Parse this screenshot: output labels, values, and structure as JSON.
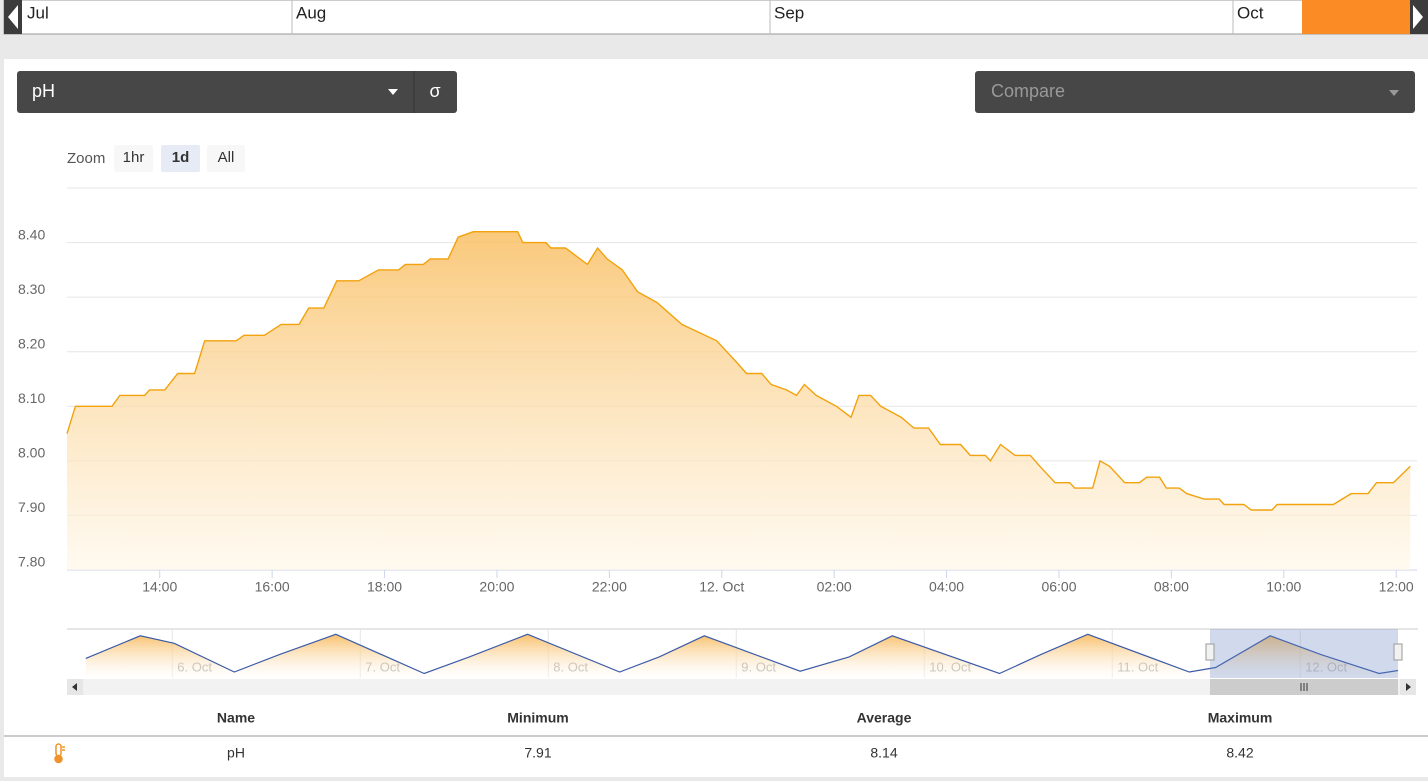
{
  "timeline": {
    "months": [
      "Jul",
      "Aug",
      "Sep",
      "Oct"
    ]
  },
  "parameter_select": {
    "value": "pH",
    "sigma": "σ"
  },
  "compare_select": {
    "placeholder": "Compare"
  },
  "zoom": {
    "label": "Zoom",
    "buttons": [
      "1hr",
      "1d",
      "All"
    ],
    "selected": 1
  },
  "chart_data": {
    "type": "line",
    "color": "#f2a20c",
    "grid": true,
    "x": [
      12.35,
      12.5,
      13.15,
      13.29,
      13.73,
      13.82,
      14.09,
      14.32,
      14.62,
      14.8,
      15.36,
      15.5,
      15.86,
      16.16,
      16.48,
      16.65,
      16.92,
      17.15,
      17.54,
      17.89,
      18.25,
      18.37,
      18.69,
      18.81,
      19.13,
      19.31,
      19.58,
      20.37,
      20.46,
      20.87,
      20.96,
      21.22,
      21.61,
      21.79,
      21.96,
      22.23,
      22.5,
      22.85,
      23.29,
      23.91,
      24.27,
      24.44,
      24.71,
      24.88,
      25.15,
      25.33,
      25.47,
      25.68,
      26.04,
      26.3,
      26.44,
      26.65,
      26.83,
      27.19,
      27.42,
      27.68,
      27.89,
      28.25,
      28.42,
      28.69,
      28.78,
      28.96,
      29.22,
      29.49,
      29.66,
      29.93,
      30.19,
      30.28,
      30.6,
      30.73,
      30.9,
      31.17,
      31.43,
      31.56,
      31.79,
      31.91,
      32.14,
      32.27,
      32.58,
      32.85,
      32.94,
      33.29,
      33.42,
      33.79,
      33.88,
      34.88,
      35.2,
      35.5,
      35.65,
      35.95,
      36.25
    ],
    "values": [
      8.05,
      8.1,
      8.1,
      8.12,
      8.12,
      8.13,
      8.13,
      8.16,
      8.16,
      8.22,
      8.22,
      8.23,
      8.23,
      8.25,
      8.25,
      8.28,
      8.28,
      8.33,
      8.33,
      8.35,
      8.35,
      8.36,
      8.36,
      8.37,
      8.37,
      8.41,
      8.42,
      8.42,
      8.4,
      8.4,
      8.39,
      8.39,
      8.36,
      8.39,
      8.37,
      8.35,
      8.31,
      8.29,
      8.25,
      8.22,
      8.18,
      8.16,
      8.16,
      8.14,
      8.13,
      8.12,
      8.14,
      8.12,
      8.1,
      8.08,
      8.12,
      8.12,
      8.1,
      8.08,
      8.06,
      8.06,
      8.03,
      8.03,
      8.01,
      8.01,
      8.0,
      8.03,
      8.01,
      8.01,
      7.99,
      7.96,
      7.96,
      7.95,
      7.95,
      8.0,
      7.99,
      7.96,
      7.96,
      7.97,
      7.97,
      7.95,
      7.95,
      7.94,
      7.93,
      7.93,
      7.92,
      7.92,
      7.91,
      7.91,
      7.92,
      7.92,
      7.94,
      7.94,
      7.96,
      7.96,
      7.99
    ],
    "xlim": [
      12.35,
      36.37
    ],
    "xticks": [
      {
        "value": 14,
        "label": "14:00"
      },
      {
        "value": 16,
        "label": "16:00"
      },
      {
        "value": 18,
        "label": "18:00"
      },
      {
        "value": 20,
        "label": "20:00"
      },
      {
        "value": 22,
        "label": "22:00"
      },
      {
        "value": 24,
        "label": "12. Oct"
      },
      {
        "value": 26,
        "label": "02:00"
      },
      {
        "value": 28,
        "label": "04:00"
      },
      {
        "value": 30,
        "label": "06:00"
      },
      {
        "value": 32,
        "label": "08:00"
      },
      {
        "value": 34,
        "label": "10:00"
      },
      {
        "value": 36,
        "label": "12:00"
      }
    ],
    "ylim": [
      7.8,
      8.5
    ],
    "yticks": [
      {
        "value": 7.8,
        "label": "7.80"
      },
      {
        "value": 7.9,
        "label": "7.90"
      },
      {
        "value": 8.0,
        "label": "8.00"
      },
      {
        "value": 8.1,
        "label": "8.10"
      },
      {
        "value": 8.2,
        "label": "8.20"
      },
      {
        "value": 8.3,
        "label": "8.30"
      },
      {
        "value": 8.4,
        "label": "8.40"
      }
    ]
  },
  "navigator": {
    "type": "line",
    "color": "#3b5ba9",
    "x": [
      5.54,
      5.83,
      6.01,
      6.33,
      6.57,
      6.87,
      7.34,
      7.58,
      7.89,
      8.38,
      8.59,
      8.83,
      9.34,
      9.6,
      9.83,
      10.4,
      10.62,
      10.87,
      11.41,
      11.55,
      11.84,
      12.11,
      12.42,
      12.52
    ],
    "values": [
      8.1,
      8.4,
      8.3,
      7.92,
      8.15,
      8.42,
      7.9,
      8.12,
      8.42,
      7.92,
      8.12,
      8.4,
      7.93,
      8.12,
      8.4,
      7.9,
      8.15,
      8.42,
      7.92,
      7.98,
      8.4,
      8.15,
      7.9,
      7.94
    ],
    "xlim": [
      5.44,
      12.52
    ],
    "ylim": [
      7.88,
      8.45
    ],
    "xticks": [
      {
        "value": 6,
        "label": "6. Oct"
      },
      {
        "value": 7,
        "label": "7. Oct"
      },
      {
        "value": 8,
        "label": "8. Oct"
      },
      {
        "value": 9,
        "label": "9. Oct"
      },
      {
        "value": 10,
        "label": "10. Oct"
      },
      {
        "value": 11,
        "label": "11. Oct"
      },
      {
        "value": 12,
        "label": "12. Oct"
      }
    ]
  },
  "table": {
    "header": [
      "Name",
      "Minimum",
      "Average",
      "Maximum"
    ],
    "rows": [
      [
        "pH",
        "7.91",
        "8.14",
        "8.42"
      ]
    ]
  }
}
